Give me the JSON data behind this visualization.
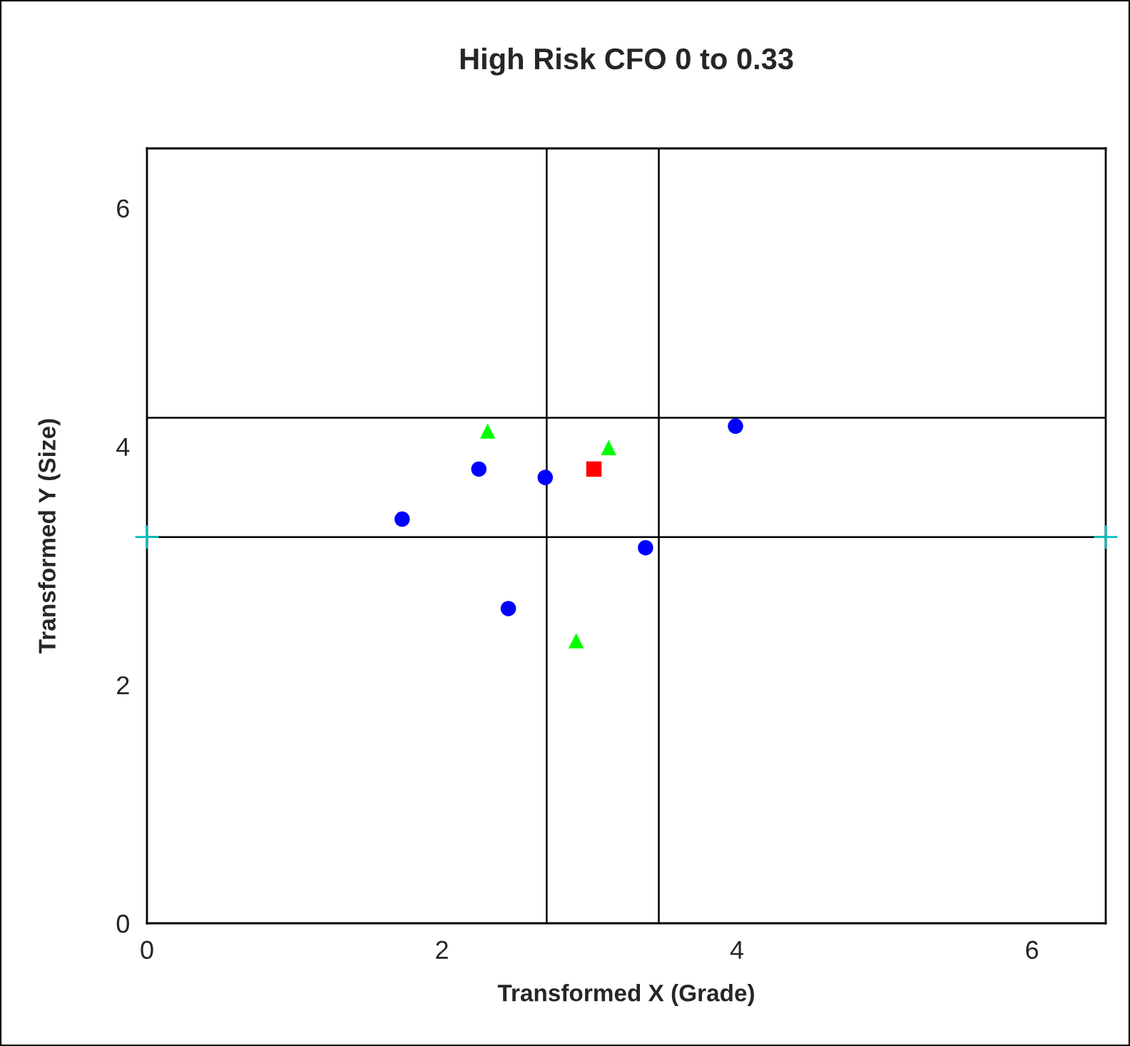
{
  "chart_data": {
    "type": "scatter",
    "title": "High Risk CFO 0 to 0.33",
    "xlabel": "Transformed X (Grade)",
    "ylabel": "Transformed Y (Size)",
    "xlim": [
      0,
      6.5
    ],
    "ylim": [
      0,
      6.5
    ],
    "xticks": [
      0,
      2,
      4,
      6
    ],
    "yticks": [
      0,
      2,
      4,
      6
    ],
    "grid": false,
    "legend": false,
    "series": [
      {
        "color": "#0000ff",
        "marker": "circle",
        "x": [
          1.73,
          2.25,
          2.7,
          2.45,
          3.38,
          3.99
        ],
        "values": [
          3.39,
          3.81,
          3.74,
          2.64,
          3.15,
          4.17
        ]
      },
      {
        "color": "#00ff00",
        "marker": "triangle",
        "x": [
          2.31,
          3.13,
          2.91
        ],
        "values": [
          4.13,
          3.99,
          2.37
        ]
      },
      {
        "color": "#ff0000",
        "marker": "square",
        "x": [
          3.03
        ],
        "values": [
          3.81
        ]
      },
      {
        "color": "#00c0c0",
        "marker": "cross",
        "x": [
          0,
          6.5
        ],
        "values": [
          3.24,
          3.24
        ]
      }
    ],
    "ref_lines": [
      {
        "axis": "x",
        "value": 2.71,
        "color": "#000000"
      },
      {
        "axis": "x",
        "value": 3.47,
        "color": "#000000"
      },
      {
        "axis": "y",
        "value": 4.24,
        "color": "#000000"
      },
      {
        "axis": "y",
        "value": 3.24,
        "color": "#000000"
      }
    ]
  }
}
